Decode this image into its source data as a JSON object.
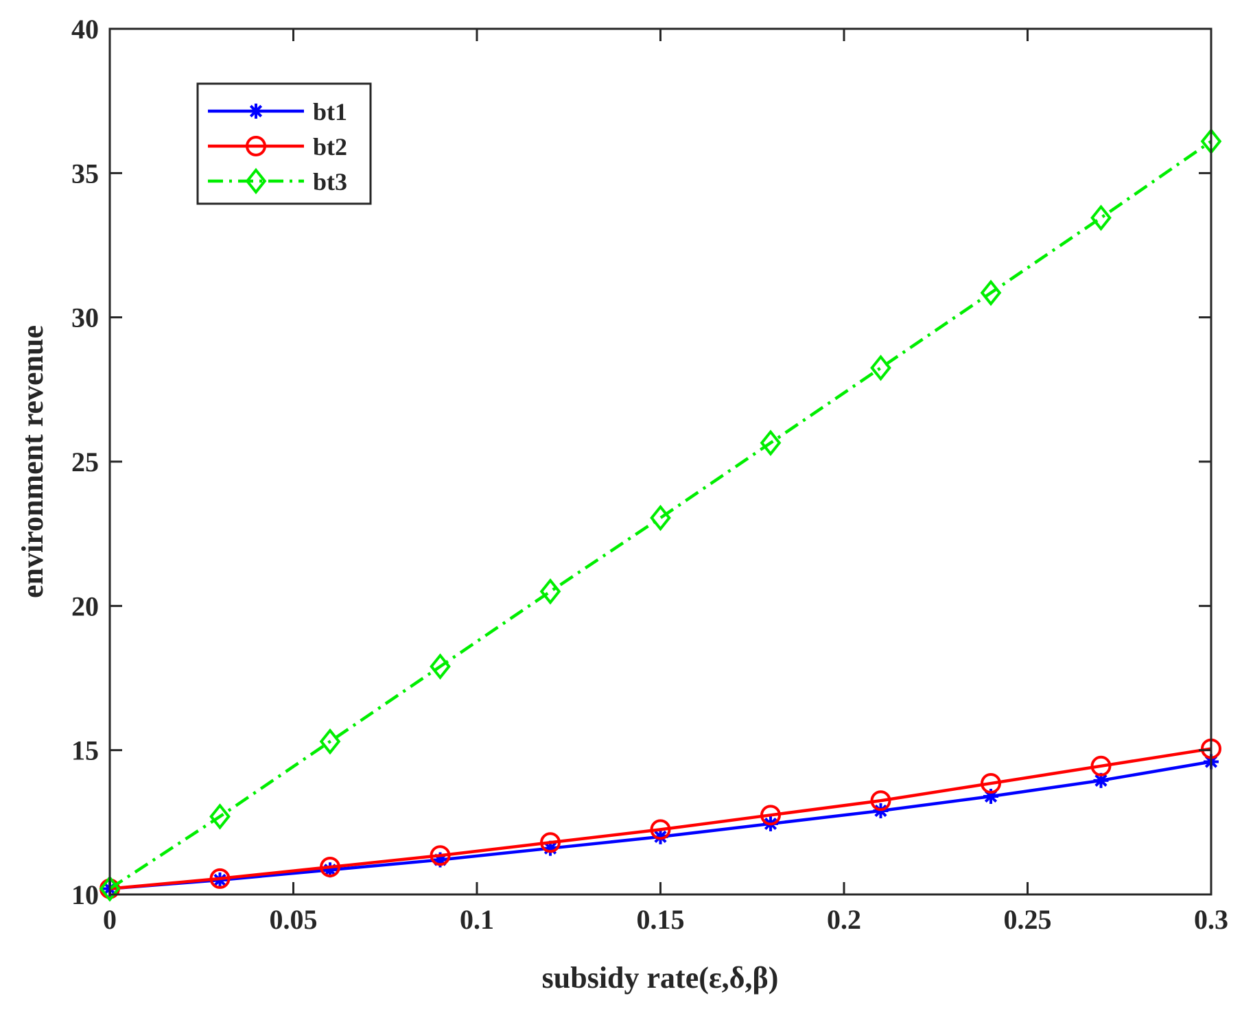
{
  "chart_data": {
    "type": "line",
    "title": "",
    "xlabel": "subsidy rate(ε,δ,β)",
    "ylabel": "environment revenue",
    "xlim": [
      0,
      0.3
    ],
    "ylim": [
      10,
      40
    ],
    "x_ticks": [
      0,
      0.05,
      0.1,
      0.15,
      0.2,
      0.25,
      0.3
    ],
    "x_tick_labels": [
      "0",
      "0.05",
      "0.1",
      "0.15",
      "0.2",
      "0.25",
      "0.3"
    ],
    "y_ticks": [
      10,
      15,
      20,
      25,
      30,
      35,
      40
    ],
    "y_tick_labels": [
      "10",
      "15",
      "20",
      "25",
      "30",
      "35",
      "40"
    ],
    "grid": false,
    "legend_position": "top-left",
    "x": [
      0,
      0.03,
      0.06,
      0.09,
      0.12,
      0.15,
      0.18,
      0.21,
      0.24,
      0.27,
      0.3
    ],
    "series": [
      {
        "name": "bt1",
        "color": "#0000ff",
        "line_style": "solid",
        "marker": "asterisk",
        "values": [
          10.2,
          10.5,
          10.85,
          11.2,
          11.6,
          12.0,
          12.45,
          12.9,
          13.4,
          13.95,
          14.6
        ]
      },
      {
        "name": "bt2",
        "color": "#ff0000",
        "line_style": "solid",
        "marker": "circle",
        "values": [
          10.2,
          10.55,
          10.95,
          11.35,
          11.8,
          12.25,
          12.75,
          13.25,
          13.85,
          14.45,
          15.05
        ]
      },
      {
        "name": "bt3",
        "color": "#00ee00",
        "line_style": "dash-dot",
        "marker": "diamond",
        "values": [
          10.2,
          12.7,
          15.3,
          17.9,
          20.5,
          23.05,
          25.65,
          28.25,
          30.85,
          33.45,
          36.1
        ]
      }
    ]
  }
}
